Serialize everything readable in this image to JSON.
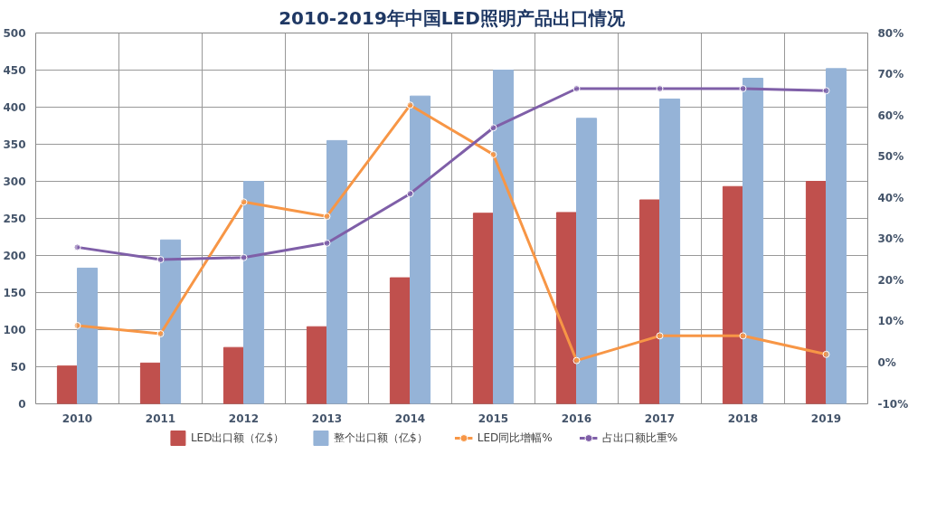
{
  "chart_data": {
    "type": "bar",
    "title": "2010-2019年中国LED照明产品出口情况",
    "categories": [
      "2010",
      "2011",
      "2012",
      "2013",
      "2014",
      "2015",
      "2016",
      "2017",
      "2018",
      "2019"
    ],
    "series": [
      {
        "name": "LED出口额（亿$）",
        "color": "#c0504d",
        "values": [
          51,
          55,
          76,
          104,
          170,
          257,
          258,
          275,
          293,
          300
        ]
      },
      {
        "name": "整个出口额（亿$）",
        "color": "#95b3d7",
        "values": [
          183,
          221,
          300,
          355,
          415,
          450,
          385,
          411,
          439,
          452
        ]
      },
      {
        "name": "LED同比增幅%",
        "type": "line",
        "axis": "y2",
        "color": "#f79646",
        "marker": "circle",
        "values": [
          9,
          7,
          39,
          35.5,
          62.5,
          50.5,
          0.5,
          6.5,
          6.5,
          2
        ]
      },
      {
        "name": "占出口额比重%",
        "type": "line",
        "axis": "y2",
        "color": "#7f5fa8",
        "marker": "circle",
        "values": [
          28,
          25,
          25.5,
          29,
          41,
          57,
          66.5,
          66.5,
          66.5,
          66
        ]
      }
    ],
    "ylim": [
      0,
      500
    ],
    "yticks": [
      0,
      50,
      100,
      150,
      200,
      250,
      300,
      350,
      400,
      450,
      500
    ],
    "y2lim": [
      -10,
      80
    ],
    "y2ticks": [
      {
        "value": -10,
        "label": "-10%"
      },
      {
        "value": 0,
        "label": "0%"
      },
      {
        "value": 10,
        "label": "10%"
      },
      {
        "value": 20,
        "label": "20%"
      },
      {
        "value": 30,
        "label": "30%"
      },
      {
        "value": 40,
        "label": "40%"
      },
      {
        "value": 50,
        "label": "50%"
      },
      {
        "value": 60,
        "label": "60%"
      },
      {
        "value": 70,
        "label": "70%"
      },
      {
        "value": 80,
        "label": "80%"
      }
    ],
    "grid": true,
    "legend": "bottom",
    "line_style": "solid"
  }
}
